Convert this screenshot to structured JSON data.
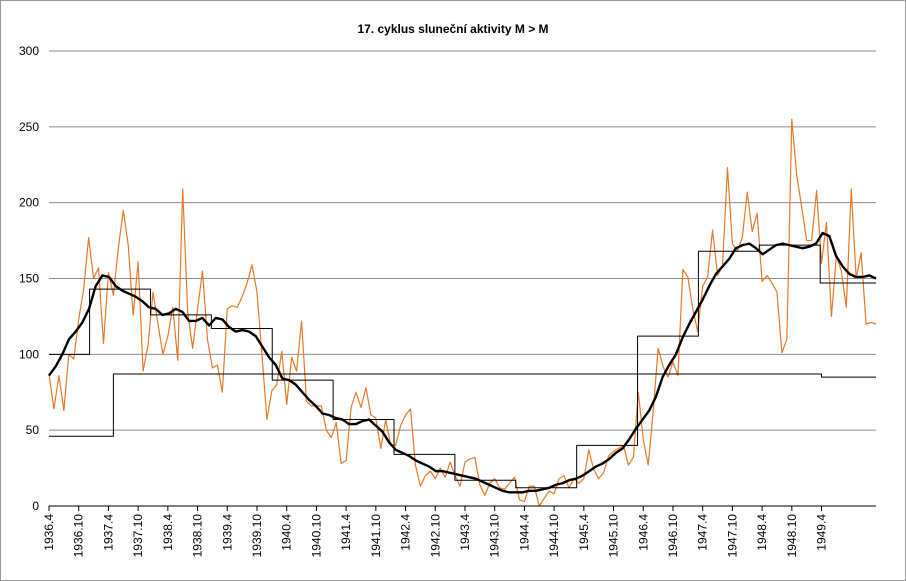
{
  "chart_data": {
    "type": "line",
    "title": "17. cyklus sluneční aktivity  M > M",
    "xlabel": "",
    "ylabel": "",
    "ylim": [
      0,
      300
    ],
    "y_ticks": [
      0,
      50,
      100,
      150,
      200,
      250,
      300
    ],
    "x_range": [
      "1936.4",
      "1949.7"
    ],
    "x_tick_labels": [
      "1936.4",
      "1936.10",
      "1937.4",
      "1937.10",
      "1938.4",
      "1938.10",
      "1939.4",
      "1939.10",
      "1940.4",
      "1940.10",
      "1941.4",
      "1941.10",
      "1942.4",
      "1942.10",
      "1943.4",
      "1943.10",
      "1944.4",
      "1944.10",
      "1945.4",
      "1945.10",
      "1946.4",
      "1946.10",
      "1947.4",
      "1947.10",
      "1948.4",
      "1948.10",
      "1949.4"
    ],
    "grid": "horizontal",
    "legend": "none",
    "series": [
      {
        "key": "monthly",
        "color": "#e8782a",
        "values": [
          87,
          64,
          86,
          63,
          100,
          97,
          123,
          143,
          177,
          150,
          157,
          107,
          154,
          139,
          170,
          195,
          172,
          126,
          161,
          89,
          106,
          141,
          120,
          100,
          112,
          131,
          96,
          209,
          128,
          104,
          130,
          155,
          110,
          91,
          93,
          75,
          130,
          132,
          131,
          138,
          147,
          159,
          141,
          100,
          57,
          76,
          80,
          102,
          67,
          98,
          89,
          122,
          69,
          66,
          66,
          66,
          50,
          45,
          55,
          28,
          30,
          65,
          75,
          65,
          78,
          60,
          58,
          38,
          57,
          40,
          40,
          53,
          60,
          64,
          27,
          13,
          20,
          23,
          18,
          25,
          19,
          29,
          20,
          13,
          29,
          31,
          32,
          14,
          7,
          15,
          18,
          12,
          11,
          15,
          19,
          4,
          3,
          13,
          13,
          0,
          5,
          10,
          8,
          18,
          20,
          12,
          18,
          15,
          18,
          37,
          24,
          18,
          22,
          33,
          36,
          38,
          40,
          27,
          32,
          75,
          44,
          27,
          62,
          104,
          92,
          85,
          95,
          86,
          156,
          151,
          130,
          115,
          145,
          151,
          182,
          152,
          158,
          223,
          173,
          168,
          177,
          207,
          181,
          193,
          148,
          152,
          147,
          141,
          101,
          110,
          255,
          218,
          197,
          175,
          175,
          208,
          160,
          187,
          125,
          165,
          155,
          131,
          209,
          150,
          167,
          120,
          121,
          120
        ]
      },
      {
        "key": "smoothed",
        "color": "#000000",
        "values": [
          86,
          92,
          100,
          110,
          115,
          121,
          130,
          145,
          152,
          151,
          145,
          142,
          140,
          138,
          135,
          131,
          130,
          126,
          127,
          130,
          128,
          122,
          122,
          124,
          119,
          124,
          123,
          118,
          115,
          116,
          115,
          112,
          105,
          98,
          93,
          84,
          83,
          80,
          75,
          70,
          66,
          61,
          60,
          58,
          57,
          54,
          54,
          56,
          57,
          53,
          49,
          42,
          37,
          35,
          33,
          30,
          28,
          26,
          23,
          23,
          22,
          21,
          20,
          19,
          18,
          16,
          14,
          12,
          10,
          9,
          9,
          9,
          10,
          10,
          11,
          12,
          14,
          15,
          17,
          18,
          20,
          23,
          26,
          28,
          31,
          35,
          38,
          44,
          51,
          57,
          63,
          72,
          85,
          93,
          100,
          111,
          120,
          128,
          136,
          145,
          153,
          158,
          163,
          170,
          172,
          173,
          170,
          166,
          169,
          172,
          173,
          172,
          171,
          170,
          171,
          173,
          180,
          178,
          165,
          158,
          153,
          151,
          151,
          152,
          150
        ]
      },
      {
        "key": "cycle-average",
        "color": "#000000",
        "values": [
          46,
          46,
          46,
          46,
          46,
          46,
          46,
          46,
          46,
          46,
          46,
          46,
          46,
          87,
          87,
          87,
          87,
          87,
          87,
          87,
          87,
          87,
          87,
          87,
          87,
          87,
          87,
          87,
          87,
          87,
          87,
          87,
          87,
          87,
          87,
          87,
          87,
          87,
          87,
          87,
          87,
          87,
          87,
          87,
          87,
          87,
          87,
          87,
          87,
          87,
          87,
          87,
          87,
          87,
          87,
          87,
          87,
          87,
          87,
          87,
          87,
          87,
          87,
          87,
          87,
          87,
          87,
          87,
          87,
          87,
          87,
          87,
          87,
          87,
          87,
          87,
          87,
          87,
          87,
          87,
          87,
          87,
          87,
          87,
          87,
          87,
          87,
          87,
          87,
          87,
          87,
          87,
          87,
          87,
          87,
          87,
          87,
          87,
          87,
          87,
          87,
          87,
          87,
          87,
          87,
          87,
          87,
          87,
          87,
          87,
          87,
          87,
          87,
          87,
          87,
          87,
          87,
          87,
          87,
          87,
          87,
          87,
          87,
          87,
          87,
          87,
          87,
          87,
          87,
          87,
          87,
          87,
          87,
          87,
          87,
          87,
          87,
          87,
          87,
          87,
          87,
          87,
          87,
          87,
          87,
          87,
          87,
          87,
          87,
          87,
          87,
          87,
          87,
          87,
          87,
          87,
          85,
          85,
          85,
          85,
          85,
          85,
          85,
          85,
          85,
          85,
          85,
          85
        ]
      },
      {
        "key": "yearly-average",
        "color": "#000000",
        "values": [
          100,
          100,
          100,
          100,
          100,
          100,
          100,
          100,
          143,
          143,
          143,
          143,
          143,
          143,
          143,
          143,
          143,
          143,
          143,
          143,
          126,
          126,
          126,
          126,
          126,
          126,
          126,
          126,
          126,
          126,
          126,
          126,
          117,
          117,
          117,
          117,
          117,
          117,
          117,
          117,
          117,
          117,
          117,
          117,
          83,
          83,
          83,
          83,
          83,
          83,
          83,
          83,
          83,
          83,
          83,
          83,
          57,
          57,
          57,
          57,
          57,
          57,
          57,
          57,
          57,
          57,
          57,
          57,
          34,
          34,
          34,
          34,
          34,
          34,
          34,
          34,
          34,
          34,
          34,
          34,
          17,
          17,
          17,
          17,
          17,
          17,
          17,
          17,
          17,
          17,
          17,
          17,
          12,
          12,
          12,
          12,
          12,
          12,
          12,
          12,
          12,
          12,
          12,
          12,
          40,
          40,
          40,
          40,
          40,
          40,
          40,
          40,
          40,
          40,
          40,
          40,
          112,
          112,
          112,
          112,
          112,
          112,
          112,
          112,
          112,
          112,
          112,
          112,
          168,
          168,
          168,
          168,
          168,
          168,
          168,
          168,
          168,
          168,
          168,
          168,
          172,
          172,
          172,
          172,
          172,
          172,
          172,
          172,
          172,
          172,
          172,
          172,
          147,
          147,
          147,
          147,
          147,
          147,
          147,
          147,
          147,
          147,
          147,
          147
        ]
      }
    ]
  }
}
